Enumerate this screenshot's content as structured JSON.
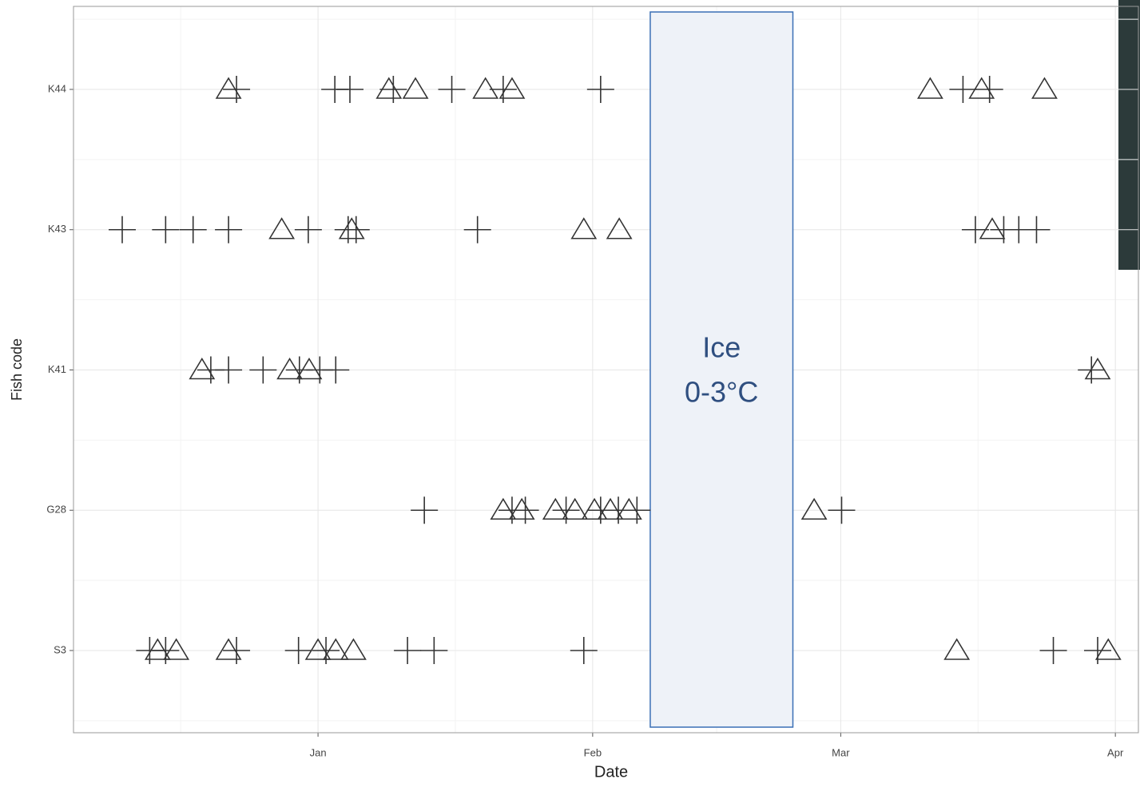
{
  "chart_data": {
    "type": "scatter",
    "x_label": "Date",
    "y_label": "Fish code",
    "categories": [
      "S3",
      "G28",
      "K41",
      "K43",
      "K44"
    ],
    "xlim": [
      -27.6,
      92.6
    ],
    "xticks": [
      {
        "value": 0,
        "label": "Jan"
      },
      {
        "value": 31,
        "label": "Feb"
      },
      {
        "value": 59,
        "label": "Mar"
      },
      {
        "value": 90,
        "label": "Apr"
      }
    ],
    "grid": true,
    "series": [
      {
        "marker": "triangle",
        "color": "#333333",
        "x": [
          -10.1,
          8.0,
          11.0,
          18.9,
          21.9,
          69.1,
          74.9,
          82.0,
          -4.1,
          3.8,
          30.0,
          34.0,
          76.1,
          -13.1,
          -3.2,
          -1.0,
          88.0,
          20.9,
          23.0,
          26.8,
          29.0,
          31.2,
          33.0,
          35.1,
          56.0,
          -18.1,
          -16.0,
          -10.1,
          0.0,
          2.0,
          4.0,
          72.1,
          89.2
        ],
        "values": [
          "K44",
          "K44",
          "K44",
          "K44",
          "K44",
          "K44",
          "K44",
          "K44",
          "K43",
          "K43",
          "K43",
          "K43",
          "K43",
          "K41",
          "K41",
          "K41",
          "K41",
          "G28",
          "G28",
          "G28",
          "G28",
          "G28",
          "G28",
          "G28",
          "G28",
          "S3",
          "S3",
          "S3",
          "S3",
          "S3",
          "S3",
          "S3",
          "S3"
        ]
      },
      {
        "marker": "plus",
        "color": "#333333",
        "x": [
          -9.2,
          1.9,
          3.6,
          8.5,
          15.1,
          20.9,
          31.9,
          72.8,
          75.8,
          -22.1,
          -17.2,
          -14.1,
          -10.1,
          -1.1,
          3.4,
          4.3,
          18.0,
          74.2,
          77.4,
          79.1,
          81.1,
          -12.1,
          -10.1,
          -6.2,
          -2.1,
          0.2,
          2.0,
          87.3,
          12.0,
          21.9,
          23.4,
          28.0,
          31.9,
          33.9,
          36.0,
          59.1,
          -19.0,
          -17.2,
          -9.2,
          -2.2,
          0.9,
          10.1,
          13.1,
          30.0,
          83.0,
          88.0
        ],
        "values": [
          "K44",
          "K44",
          "K44",
          "K44",
          "K44",
          "K44",
          "K44",
          "K44",
          "K44",
          "K43",
          "K43",
          "K43",
          "K43",
          "K43",
          "K43",
          "K43",
          "K43",
          "K43",
          "K43",
          "K43",
          "K43",
          "K41",
          "K41",
          "K41",
          "K41",
          "K41",
          "K41",
          "K41",
          "G28",
          "G28",
          "G28",
          "G28",
          "G28",
          "G28",
          "G28",
          "G28",
          "S3",
          "S3",
          "S3",
          "S3",
          "S3",
          "S3",
          "S3",
          "S3",
          "S3",
          "S3"
        ]
      }
    ],
    "annotations": [
      {
        "lines": [
          "Ice",
          "0-3°C"
        ],
        "x": [
          37.5,
          53.6
        ],
        "fill": "#eef2f8",
        "edge": "#3a6fb5",
        "text_color": "#2f4f80"
      }
    ]
  }
}
